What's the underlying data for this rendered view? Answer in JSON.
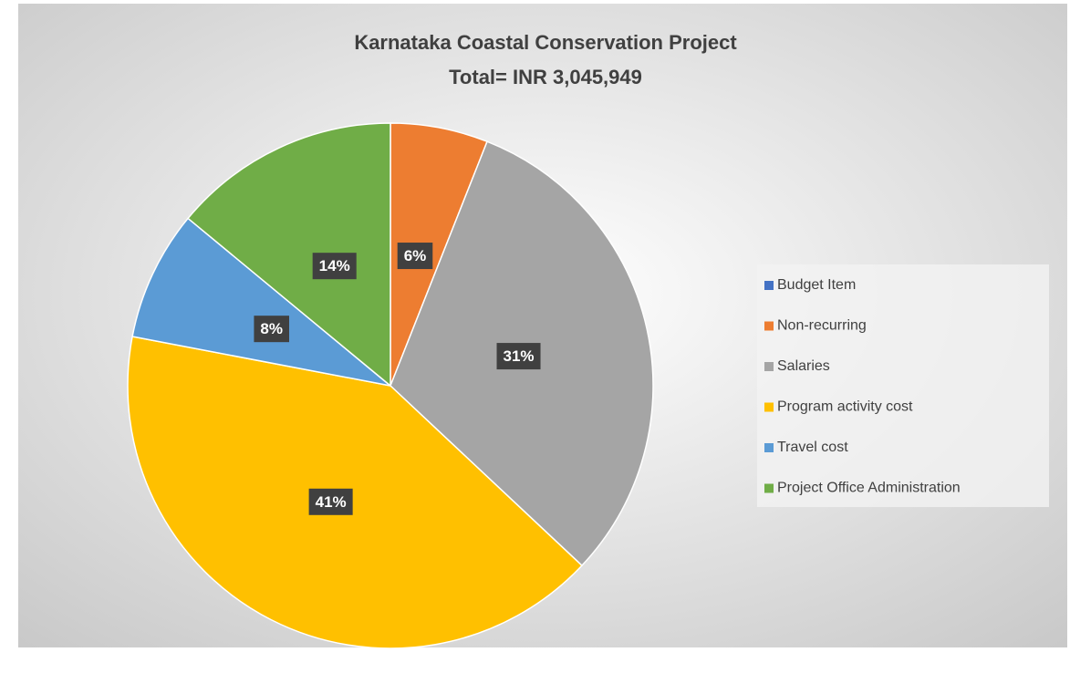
{
  "chart_data": {
    "type": "pie",
    "title": "Karnataka Coastal Conservation Project",
    "subtitle": "Total= INR 3,045,949",
    "categories": [
      "Budget Item",
      "Non-recurring",
      "Salaries",
      "Program activity cost",
      "Travel cost",
      "Project Office Administration"
    ],
    "values": [
      0,
      6,
      31,
      41,
      8,
      14
    ],
    "value_labels": [
      null,
      "6%",
      "31%",
      "41%",
      "8%",
      "14%"
    ],
    "colors": [
      "#4472c4",
      "#ed7d31",
      "#a5a5a5",
      "#ffc000",
      "#5b9bd5",
      "#70ad47"
    ],
    "legend": "right"
  }
}
